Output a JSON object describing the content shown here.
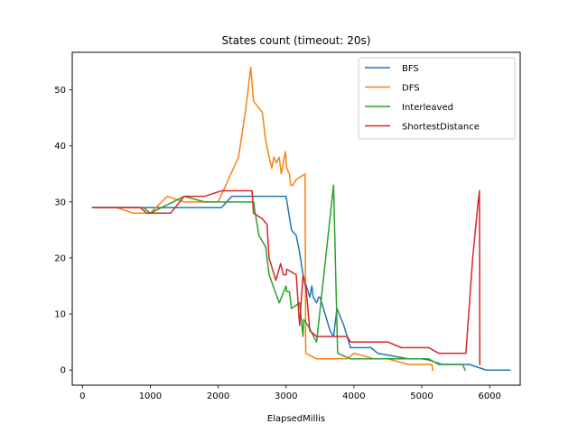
{
  "chart_data": {
    "type": "line",
    "title": "States count (timeout: 20s)",
    "xlabel": "ElapsedMillis",
    "ylabel": "",
    "xlim": [
      -150,
      6450
    ],
    "ylim": [
      -2.7,
      56.7
    ],
    "xticks": [
      0,
      1000,
      2000,
      3000,
      4000,
      5000,
      6000
    ],
    "yticks": [
      0,
      10,
      20,
      30,
      40,
      50
    ],
    "grid": false,
    "legend_position": "top-right",
    "series": [
      {
        "name": "BFS",
        "color": "#1f77b4",
        "points": [
          [
            150,
            29
          ],
          [
            600,
            29
          ],
          [
            1000,
            29
          ],
          [
            2050,
            29
          ],
          [
            2200,
            31
          ],
          [
            2500,
            31
          ],
          [
            2750,
            31
          ],
          [
            3000,
            31
          ],
          [
            3080,
            25
          ],
          [
            3150,
            24
          ],
          [
            3200,
            21
          ],
          [
            3250,
            17
          ],
          [
            3300,
            15
          ],
          [
            3350,
            13
          ],
          [
            3380,
            15
          ],
          [
            3400,
            13
          ],
          [
            3450,
            12
          ],
          [
            3480,
            13
          ],
          [
            3500,
            13
          ],
          [
            3550,
            11
          ],
          [
            3650,
            7
          ],
          [
            3700,
            6
          ],
          [
            3750,
            11
          ],
          [
            3850,
            8
          ],
          [
            3950,
            4
          ],
          [
            4250,
            4
          ],
          [
            4350,
            3
          ],
          [
            4800,
            2
          ],
          [
            5000,
            2
          ],
          [
            5100,
            1.8
          ],
          [
            5300,
            1
          ],
          [
            5700,
            1
          ],
          [
            5800,
            0.6
          ],
          [
            5950,
            0
          ],
          [
            6300,
            0
          ]
        ]
      },
      {
        "name": "DFS",
        "color": "#ff7f0e",
        "points": [
          [
            150,
            29
          ],
          [
            500,
            29
          ],
          [
            750,
            28
          ],
          [
            1000,
            28
          ],
          [
            1250,
            31
          ],
          [
            1500,
            30
          ],
          [
            2000,
            30
          ],
          [
            2300,
            38
          ],
          [
            2400,
            46
          ],
          [
            2480,
            54
          ],
          [
            2520,
            48
          ],
          [
            2650,
            46
          ],
          [
            2700,
            41
          ],
          [
            2750,
            38
          ],
          [
            2790,
            36
          ],
          [
            2820,
            38
          ],
          [
            2860,
            37
          ],
          [
            2900,
            38
          ],
          [
            2930,
            35
          ],
          [
            2960,
            37
          ],
          [
            2990,
            39
          ],
          [
            3010,
            36
          ],
          [
            3050,
            35
          ],
          [
            3070,
            33
          ],
          [
            3100,
            33
          ],
          [
            3150,
            34
          ],
          [
            3280,
            35
          ],
          [
            3290,
            3
          ],
          [
            3450,
            2
          ],
          [
            3900,
            2
          ],
          [
            4000,
            3
          ],
          [
            4300,
            2
          ],
          [
            4500,
            2
          ],
          [
            4800,
            1
          ],
          [
            5150,
            1
          ],
          [
            5160,
            0
          ]
        ]
      },
      {
        "name": "Interleaved",
        "color": "#2ca02c",
        "points": [
          [
            150,
            29
          ],
          [
            900,
            29
          ],
          [
            1000,
            28
          ],
          [
            1500,
            31
          ],
          [
            1800,
            30
          ],
          [
            2000,
            30
          ],
          [
            2250,
            30
          ],
          [
            2520,
            30
          ],
          [
            2600,
            24
          ],
          [
            2700,
            22
          ],
          [
            2750,
            17
          ],
          [
            2900,
            12
          ],
          [
            3000,
            15
          ],
          [
            3010,
            14
          ],
          [
            3050,
            14
          ],
          [
            3080,
            11
          ],
          [
            3200,
            12
          ],
          [
            3250,
            6
          ],
          [
            3260,
            9
          ],
          [
            3320,
            8
          ],
          [
            3450,
            5
          ],
          [
            3700,
            33
          ],
          [
            3760,
            3
          ],
          [
            3950,
            2
          ],
          [
            4500,
            2
          ],
          [
            5100,
            2
          ],
          [
            5250,
            1
          ],
          [
            5600,
            1
          ],
          [
            5640,
            0
          ]
        ]
      },
      {
        "name": "ShortestDistance",
        "color": "#d62728",
        "points": [
          [
            150,
            29
          ],
          [
            850,
            29
          ],
          [
            950,
            28
          ],
          [
            1300,
            28
          ],
          [
            1500,
            31
          ],
          [
            1800,
            31
          ],
          [
            2050,
            32
          ],
          [
            2300,
            32
          ],
          [
            2500,
            32
          ],
          [
            2520,
            28
          ],
          [
            2650,
            27
          ],
          [
            2720,
            26
          ],
          [
            2750,
            20
          ],
          [
            2850,
            16
          ],
          [
            2920,
            19
          ],
          [
            2960,
            17
          ],
          [
            3000,
            17
          ],
          [
            3010,
            18
          ],
          [
            3150,
            17
          ],
          [
            3200,
            8
          ],
          [
            3250,
            17
          ],
          [
            3300,
            14
          ],
          [
            3350,
            7
          ],
          [
            3450,
            6
          ],
          [
            3900,
            6
          ],
          [
            3950,
            5
          ],
          [
            4500,
            5
          ],
          [
            4700,
            4
          ],
          [
            5100,
            4
          ],
          [
            5250,
            3
          ],
          [
            5650,
            3
          ],
          [
            5750,
            20
          ],
          [
            5830,
            30
          ],
          [
            5850,
            32
          ],
          [
            5855,
            1
          ]
        ]
      }
    ]
  }
}
